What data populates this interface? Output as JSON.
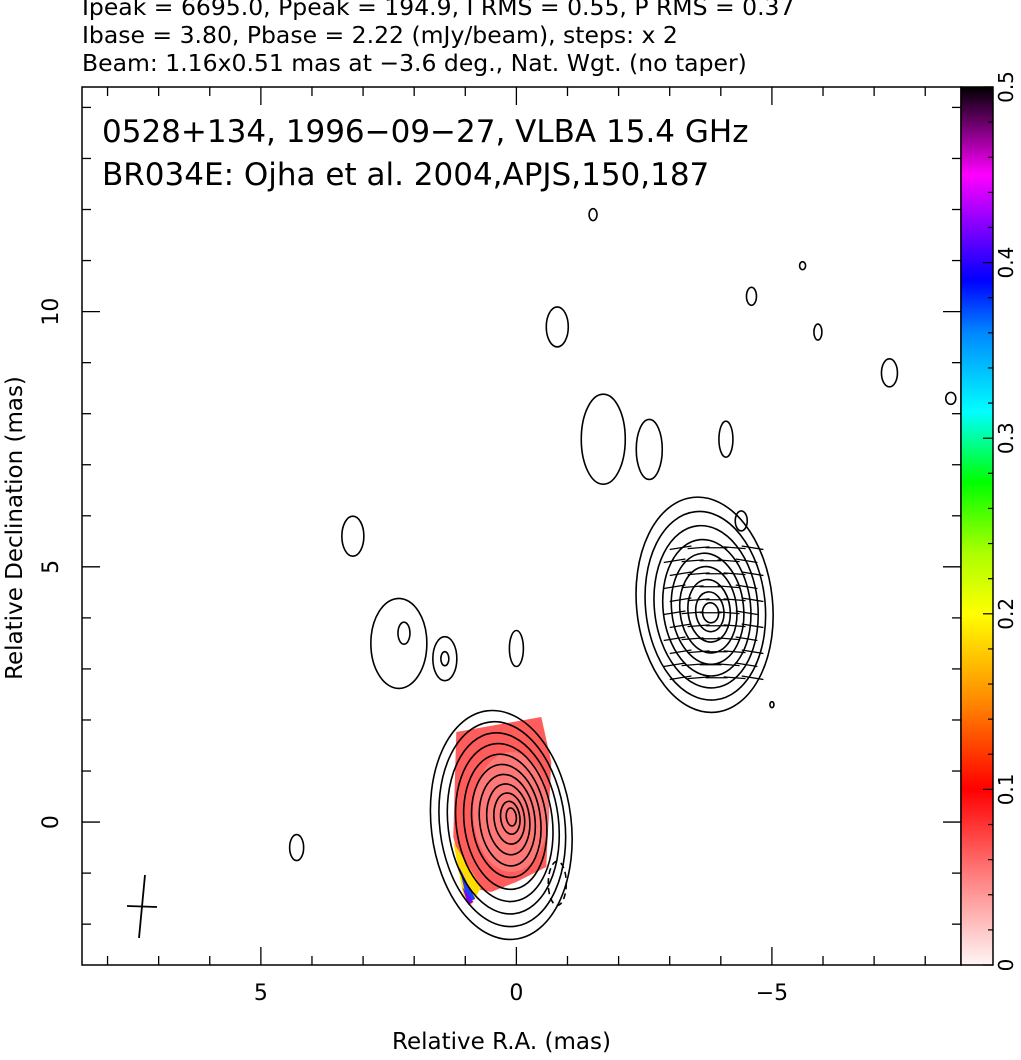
{
  "header": {
    "line1": "Ipeak = 6695.0, Ppeak = 194.9, I RMS = 0.55, P RMS = 0.37",
    "line2": "Ibase = 3.80, Pbase = 2.22 (mJy/beam), steps: x 2",
    "line3": "Beam: 1.16x0.51 mas at −3.6 deg., Nat. Wgt. (no taper)"
  },
  "chart_data": {
    "type": "contour",
    "annotation_line1": "0528+134, 1996−09−27, VLBA 15.4 GHz",
    "annotation_line2": "BR034E: Ojha et al. 2004,APJS,150,187",
    "xlabel": "Relative R.A. (mas)",
    "ylabel": "Relative Declination (mas)",
    "xlim": [
      8.5,
      -8.7
    ],
    "ylim": [
      -2.8,
      14.4
    ],
    "x_ticks": [
      5,
      0,
      -5
    ],
    "x_tick_labels": [
      "5",
      "0",
      "−5"
    ],
    "y_ticks": [
      0,
      5,
      10
    ],
    "y_tick_labels": [
      "0",
      "5",
      "10"
    ],
    "colorbar": {
      "min": 0,
      "max": 0.5,
      "ticks": [
        0,
        0.1,
        0.2,
        0.3,
        0.4,
        0.5
      ],
      "tick_labels": [
        "0",
        "0.1",
        "0.2",
        "0.3",
        "0.4",
        "0.5"
      ]
    },
    "core_component": {
      "x": 0.1,
      "y": 0.1,
      "levels": 11
    },
    "jet_component": {
      "x": -3.8,
      "y": 4.1,
      "levels": 9
    },
    "minor_contours": [
      {
        "x": -1.5,
        "y": 11.9
      },
      {
        "x": -0.8,
        "y": 9.7
      },
      {
        "x": -1.7,
        "y": 7.5
      },
      {
        "x": -2.6,
        "y": 7.3
      },
      {
        "x": -4.1,
        "y": 7.5
      },
      {
        "x": -4.4,
        "y": 5.9
      },
      {
        "x": -4.6,
        "y": 10.3
      },
      {
        "x": -5.6,
        "y": 10.9
      },
      {
        "x": -5.9,
        "y": 9.6
      },
      {
        "x": -7.3,
        "y": 8.8
      },
      {
        "x": -8.5,
        "y": 8.3
      },
      {
        "x": 3.2,
        "y": 5.6
      },
      {
        "x": 2.3,
        "y": 3.5
      },
      {
        "x": 1.4,
        "y": 3.2
      },
      {
        "x": 0.0,
        "y": 3.4
      },
      {
        "x": 4.3,
        "y": -0.5
      },
      {
        "x": -0.8,
        "y": -1.2
      },
      {
        "x": -5.0,
        "y": 2.3
      }
    ]
  }
}
